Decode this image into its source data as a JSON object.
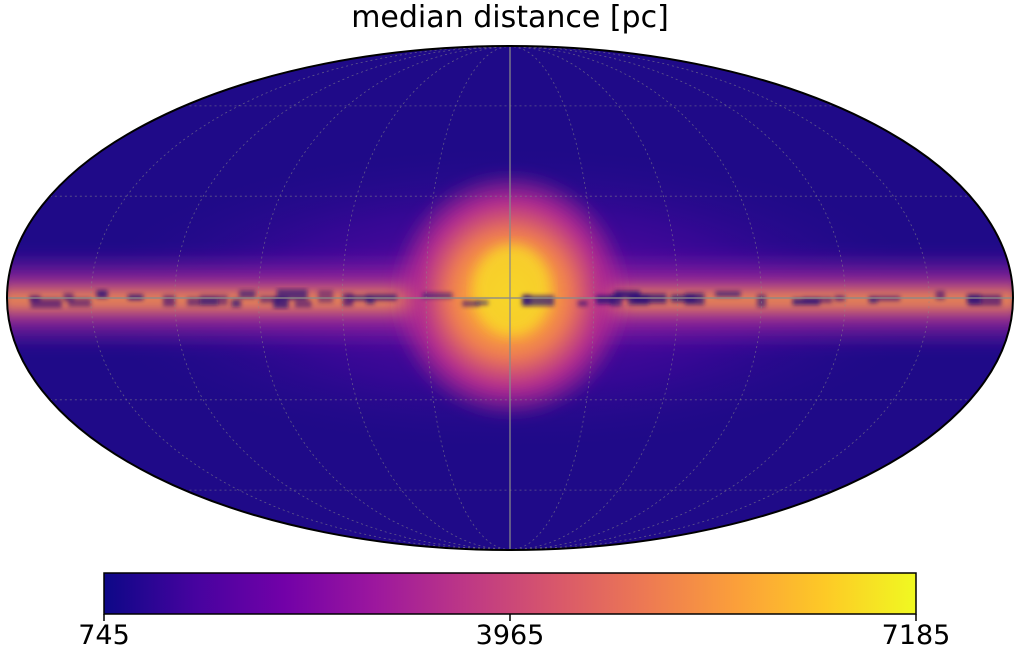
{
  "chart_data": {
    "type": "heatmap",
    "projection": "mollweide",
    "title": "median distance [pc]",
    "colormap": "plasma",
    "colorbar": {
      "min": 745,
      "max": 7185,
      "ticks": [
        745,
        3965,
        7185
      ],
      "tick_labels": [
        "745",
        "3965",
        "7185"
      ],
      "orientation": "horizontal",
      "placement": "bottom"
    },
    "graticule": {
      "meridians_deg": [
        -150,
        -120,
        -90,
        -60,
        -30,
        0,
        30,
        60,
        90,
        120,
        150
      ],
      "parallels_deg": [
        -60,
        -30,
        0,
        30,
        60
      ]
    },
    "features": [
      {
        "name": "galactic bulge",
        "lon_deg": 0,
        "lat_deg": 0,
        "value_pc": 6500
      },
      {
        "name": "galactic plane band",
        "lat_deg": 0,
        "value_pc": 4500
      },
      {
        "name": "high-latitude background",
        "value_pc": 900
      }
    ],
    "colors": {
      "cmap_stops": [
        "#0d0887",
        "#46039f",
        "#7201a8",
        "#9c179e",
        "#bd3786",
        "#d8576b",
        "#ed7953",
        "#fb9f3a",
        "#fdca26",
        "#f0f921"
      ],
      "background": "#1d0a86",
      "dust_lane": "#2a0a7a",
      "graticule": "#8a8a8a"
    }
  }
}
